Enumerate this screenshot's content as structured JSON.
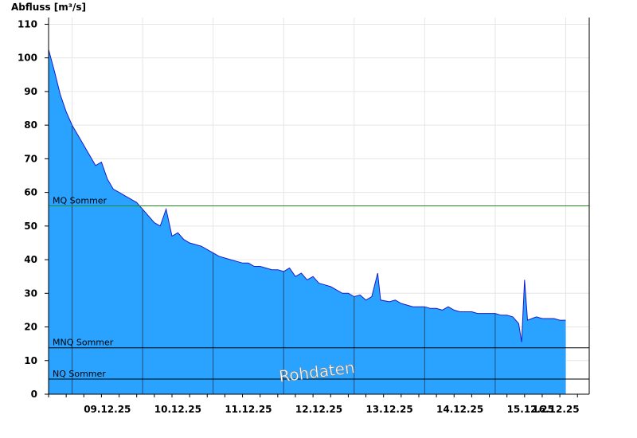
{
  "chart_data": {
    "type": "area",
    "ylabel": "Abfluss [m³/s]",
    "ylim": [
      0,
      112
    ],
    "yticks": [
      0,
      10,
      20,
      30,
      40,
      50,
      60,
      70,
      80,
      90,
      100,
      110
    ],
    "xlim": [
      "2025-12-08T16:00",
      "2025-12-16T08:00"
    ],
    "xtick_labels": [
      "09.12.25",
      "10.12.25",
      "11.12.25",
      "12.12.25",
      "13.12.25",
      "14.12.25",
      "15.12.25",
      "16.12.25"
    ],
    "grid": true,
    "fill_color": "#29a3ff",
    "line_color": "#1a1acc",
    "watermark": "Rohdaten",
    "reference_lines": [
      {
        "label": "MQ Sommer",
        "value": 56,
        "color": "#228b22"
      },
      {
        "label": "MNQ Sommer",
        "value": 13.8,
        "color": "#000000"
      },
      {
        "label": "NQ Sommer",
        "value": 4.5,
        "color": "#000000"
      }
    ],
    "series": [
      {
        "points": [
          [
            "2025-12-08T16:00",
            102.5
          ],
          [
            "2025-12-08T18:00",
            96
          ],
          [
            "2025-12-08T20:00",
            89
          ],
          [
            "2025-12-08T22:00",
            84
          ],
          [
            "2025-12-09T00:00",
            80
          ],
          [
            "2025-12-09T02:00",
            77
          ],
          [
            "2025-12-09T04:00",
            74
          ],
          [
            "2025-12-09T06:00",
            71
          ],
          [
            "2025-12-09T08:00",
            68
          ],
          [
            "2025-12-09T10:00",
            69
          ],
          [
            "2025-12-09T12:00",
            64
          ],
          [
            "2025-12-09T14:00",
            61
          ],
          [
            "2025-12-09T16:00",
            60
          ],
          [
            "2025-12-09T18:00",
            59
          ],
          [
            "2025-12-09T20:00",
            58
          ],
          [
            "2025-12-09T22:00",
            57
          ],
          [
            "2025-12-10T00:00",
            55
          ],
          [
            "2025-12-10T02:00",
            53
          ],
          [
            "2025-12-10T04:00",
            51
          ],
          [
            "2025-12-10T06:00",
            50
          ],
          [
            "2025-12-10T08:00",
            55
          ],
          [
            "2025-12-10T10:00",
            47
          ],
          [
            "2025-12-10T12:00",
            48
          ],
          [
            "2025-12-10T14:00",
            46
          ],
          [
            "2025-12-10T16:00",
            45
          ],
          [
            "2025-12-10T18:00",
            44.5
          ],
          [
            "2025-12-10T20:00",
            44
          ],
          [
            "2025-12-10T22:00",
            43
          ],
          [
            "2025-12-11T00:00",
            42
          ],
          [
            "2025-12-11T02:00",
            41
          ],
          [
            "2025-12-11T04:00",
            40.5
          ],
          [
            "2025-12-11T06:00",
            40
          ],
          [
            "2025-12-11T08:00",
            39.5
          ],
          [
            "2025-12-11T10:00",
            39
          ],
          [
            "2025-12-11T12:00",
            39
          ],
          [
            "2025-12-11T14:00",
            38
          ],
          [
            "2025-12-11T16:00",
            38
          ],
          [
            "2025-12-11T18:00",
            37.5
          ],
          [
            "2025-12-11T20:00",
            37
          ],
          [
            "2025-12-11T22:00",
            37
          ],
          [
            "2025-12-12T00:00",
            36.5
          ],
          [
            "2025-12-12T02:00",
            37.5
          ],
          [
            "2025-12-12T04:00",
            35
          ],
          [
            "2025-12-12T06:00",
            36
          ],
          [
            "2025-12-12T08:00",
            34
          ],
          [
            "2025-12-12T10:00",
            35
          ],
          [
            "2025-12-12T12:00",
            33
          ],
          [
            "2025-12-12T14:00",
            32.5
          ],
          [
            "2025-12-12T16:00",
            32
          ],
          [
            "2025-12-12T18:00",
            31
          ],
          [
            "2025-12-12T20:00",
            30
          ],
          [
            "2025-12-12T22:00",
            30
          ],
          [
            "2025-12-13T00:00",
            29
          ],
          [
            "2025-12-13T02:00",
            29.5
          ],
          [
            "2025-12-13T04:00",
            28
          ],
          [
            "2025-12-13T06:00",
            29
          ],
          [
            "2025-12-13T08:00",
            36
          ],
          [
            "2025-12-13T09:00",
            28
          ],
          [
            "2025-12-13T12:00",
            27.5
          ],
          [
            "2025-12-13T14:00",
            28
          ],
          [
            "2025-12-13T16:00",
            27
          ],
          [
            "2025-12-13T18:00",
            26.5
          ],
          [
            "2025-12-13T20:00",
            26
          ],
          [
            "2025-12-13T22:00",
            26
          ],
          [
            "2025-12-14T00:00",
            26
          ],
          [
            "2025-12-14T02:00",
            25.5
          ],
          [
            "2025-12-14T04:00",
            25.5
          ],
          [
            "2025-12-14T06:00",
            25
          ],
          [
            "2025-12-14T08:00",
            26
          ],
          [
            "2025-12-14T10:00",
            25
          ],
          [
            "2025-12-14T12:00",
            24.5
          ],
          [
            "2025-12-14T14:00",
            24.5
          ],
          [
            "2025-12-14T16:00",
            24.5
          ],
          [
            "2025-12-14T18:00",
            24
          ],
          [
            "2025-12-14T20:00",
            24
          ],
          [
            "2025-12-14T22:00",
            24
          ],
          [
            "2025-12-15T00:00",
            24
          ],
          [
            "2025-12-15T02:00",
            23.5
          ],
          [
            "2025-12-15T04:00",
            23.5
          ],
          [
            "2025-12-15T06:00",
            23
          ],
          [
            "2025-12-15T08:00",
            21
          ],
          [
            "2025-12-15T09:00",
            15.5
          ],
          [
            "2025-12-15T10:00",
            34
          ],
          [
            "2025-12-15T11:00",
            22
          ],
          [
            "2025-12-15T14:00",
            23
          ],
          [
            "2025-12-15T16:00",
            22.5
          ],
          [
            "2025-12-15T18:00",
            22.5
          ],
          [
            "2025-12-15T20:00",
            22.5
          ],
          [
            "2025-12-15T22:00",
            22
          ],
          [
            "2025-12-16T00:00",
            22
          ]
        ]
      }
    ]
  }
}
